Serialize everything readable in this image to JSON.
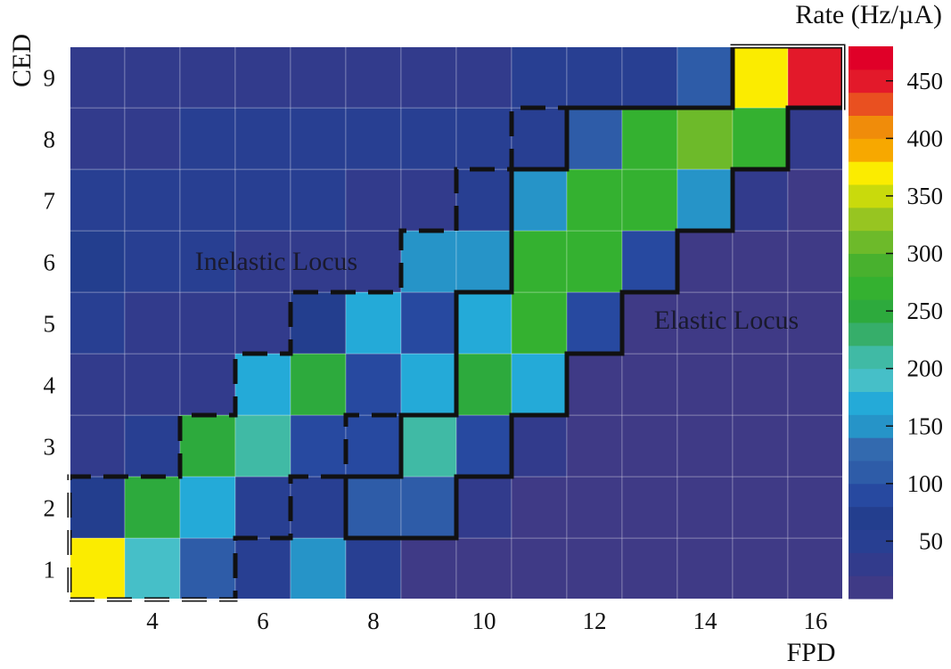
{
  "chart_data": {
    "type": "heatmap",
    "title": "",
    "xlabel": "FPD",
    "ylabel": "CED",
    "colorbar_label": "Rate (Hz/µA)",
    "x": [
      3,
      4,
      5,
      6,
      7,
      8,
      9,
      10,
      11,
      12,
      13,
      14,
      15,
      16
    ],
    "y": [
      1,
      2,
      3,
      4,
      5,
      6,
      7,
      8,
      9
    ],
    "xlim": [
      2.5,
      16.5
    ],
    "ylim": [
      0.5,
      9.5
    ],
    "x_ticks": [
      "4",
      "6",
      "8",
      "10",
      "12",
      "14",
      "16"
    ],
    "y_ticks": [
      "1",
      "2",
      "3",
      "4",
      "5",
      "6",
      "7",
      "8",
      "9"
    ],
    "z_rows_by_ced": [
      [
        370,
        190,
        100,
        50,
        140,
        50,
        10,
        10,
        10,
        10,
        10,
        10,
        10,
        10
      ],
      [
        60,
        240,
        170,
        40,
        40,
        100,
        100,
        30,
        10,
        10,
        10,
        10,
        10,
        10
      ],
      [
        20,
        40,
        240,
        200,
        90,
        90,
        210,
        90,
        30,
        10,
        10,
        10,
        10,
        10
      ],
      [
        30,
        20,
        20,
        170,
        250,
        90,
        170,
        250,
        170,
        10,
        10,
        10,
        10,
        10
      ],
      [
        50,
        30,
        30,
        20,
        60,
        170,
        90,
        170,
        260,
        90,
        10,
        10,
        10,
        10
      ],
      [
        60,
        50,
        40,
        30,
        30,
        30,
        140,
        140,
        260,
        260,
        90,
        10,
        10,
        10
      ],
      [
        40,
        50,
        50,
        40,
        40,
        30,
        20,
        40,
        140,
        260,
        260,
        140,
        30,
        10
      ],
      [
        20,
        20,
        50,
        50,
        40,
        50,
        50,
        40,
        50,
        100,
        260,
        310,
        260,
        30
      ],
      [
        20,
        20,
        20,
        20,
        20,
        20,
        20,
        20,
        40,
        40,
        50,
        100,
        370,
        450
      ]
    ],
    "zlim": [
      0,
      480
    ],
    "colorbar_ticks": [
      "50",
      "100",
      "150",
      "200",
      "250",
      "300",
      "350",
      "400",
      "450"
    ],
    "colorscale": [
      "#3f3a86",
      "#323b8c",
      "#283f92",
      "#233e8e",
      "#2749a0",
      "#2e5ca8",
      "#336aaf",
      "#2694c8",
      "#24aad8",
      "#46bfc8",
      "#40baa5",
      "#36ae6a",
      "#2daa3d",
      "#34b130",
      "#48b12e",
      "#6dba2a",
      "#97c521",
      "#c9da0c",
      "#fbec00",
      "#f7a800",
      "#f08c0a",
      "#e95020",
      "#e3192a",
      "#e00028"
    ],
    "regions": [
      "Inelastic Locus (dashed outline)",
      "Elastic Locus (solid outline)"
    ],
    "annotations": [
      "Inelastic Locus",
      "Elastic Locus"
    ],
    "grid": true
  }
}
